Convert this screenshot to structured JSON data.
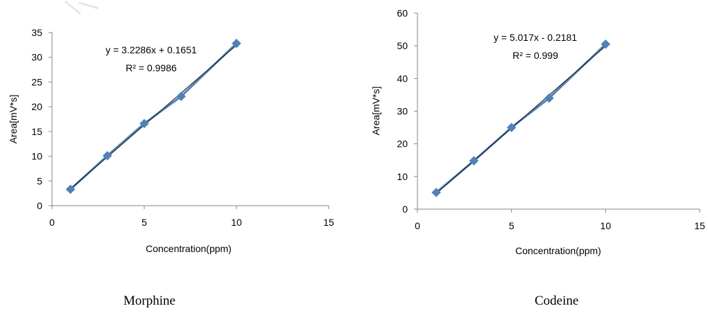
{
  "colors": {
    "marker": "#4F81BD",
    "data_line": "#4F81BD",
    "trendline": "#1F1F1F",
    "axis": "#868686",
    "text": "#000000"
  },
  "chart_data": [
    {
      "type": "scatter",
      "caption": "Morphine",
      "xlabel": "Concentration(ppm)",
      "ylabel": "Area[mV*s]",
      "xlim": [
        0,
        15
      ],
      "ylim": [
        0,
        35
      ],
      "x_ticks": [
        0,
        5,
        10,
        15
      ],
      "y_ticks": [
        0,
        5,
        10,
        15,
        20,
        25,
        30,
        35
      ],
      "grid": false,
      "marker": "diamond",
      "x": [
        1,
        3,
        5,
        7,
        10
      ],
      "y": [
        3.3,
        10.1,
        16.6,
        22.1,
        32.8
      ],
      "trendline": {
        "slope": 3.2286,
        "intercept": 0.1651
      },
      "equation": "y = 3.2286x + 0.1651",
      "r_squared": "R² = 0.9986"
    },
    {
      "type": "scatter",
      "caption": "Codeine",
      "xlabel": "Concentration(ppm)",
      "ylabel": "Area[mV*s]",
      "xlim": [
        0,
        15
      ],
      "ylim": [
        0,
        60
      ],
      "x_ticks": [
        0,
        5,
        10,
        15
      ],
      "y_ticks": [
        0,
        10,
        20,
        30,
        40,
        50,
        60
      ],
      "grid": false,
      "marker": "diamond",
      "x": [
        1,
        3,
        5,
        7,
        10
      ],
      "y": [
        5.1,
        14.8,
        25.0,
        34.0,
        50.5
      ],
      "trendline": {
        "slope": 5.017,
        "intercept": -0.2181
      },
      "equation": "y = 5.017x - 0.2181",
      "r_squared": "R² = 0.999"
    }
  ]
}
